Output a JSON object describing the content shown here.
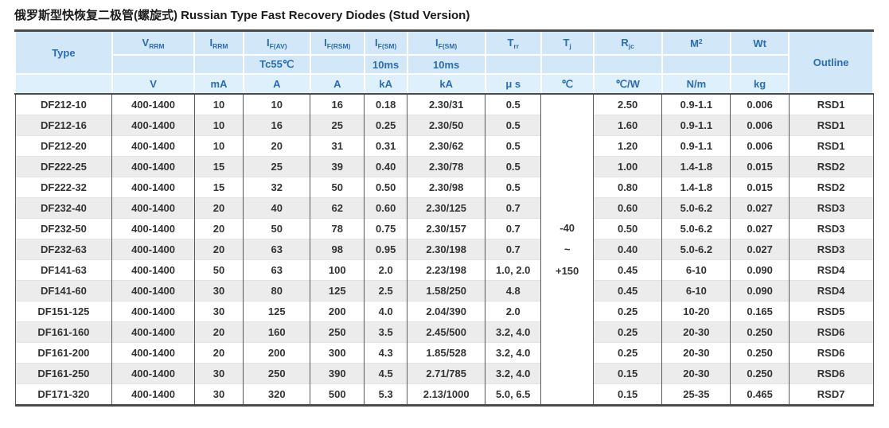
{
  "title": {
    "zh": "俄罗斯型快恢复二极管(螺旋式)",
    "en": " Russian Type Fast Recovery Diodes (Stud Version)"
  },
  "colors": {
    "header_text_blue": "#2c6cb4",
    "header_band_blue": "#d2e7f7",
    "unit_band_blue": "#ddf0fc",
    "row_stripe_gray": "#ececec",
    "rule_dark": "#4b4b4b",
    "grid_gray": "#58595b",
    "data_text": "#333333"
  },
  "table": {
    "header": {
      "type_label": "Type",
      "outline_label": "Outline",
      "symbols": {
        "vrrm": {
          "base": "V",
          "sub": "RRM"
        },
        "irrm": {
          "base": "I",
          "sub": "RRM"
        },
        "ifav": {
          "base": "I",
          "sub": "F(AV)"
        },
        "ifrsm": {
          "base": "I",
          "sub": "F(RSM)"
        },
        "ifsm1": {
          "base": "I",
          "sub": "F(SM)"
        },
        "ifsm2": {
          "base": "I",
          "sub": "F(SM)"
        },
        "trr": {
          "base": "T",
          "sub": "rr"
        },
        "tj": {
          "base": "T",
          "sub": "j"
        },
        "rjc": {
          "base": "R",
          "sub": "jc"
        },
        "m2": {
          "base": "M",
          "sup": "2"
        },
        "wt": {
          "base": "Wt"
        }
      },
      "conditions": {
        "ifav": "Tc55℃",
        "ifsm1": "10ms",
        "ifsm2": "10ms"
      },
      "units": [
        "V",
        "mA",
        "A",
        "A",
        "kA",
        "kA",
        "μ s",
        "℃",
        "℃/W",
        "N/m",
        "kg"
      ]
    },
    "tj_cell": {
      "line1": "-40",
      "line2": "~",
      "line3": "+150"
    },
    "rows": [
      {
        "cols": [
          "DF212-10",
          "400-1400",
          "10",
          "10",
          "16",
          "0.18",
          "2.30/31",
          "0.5",
          "2.50",
          "0.9-1.1",
          "0.006",
          "RSD1"
        ]
      },
      {
        "cols": [
          "DF212-16",
          "400-1400",
          "10",
          "16",
          "25",
          "0.25",
          "2.30/50",
          "0.5",
          "1.60",
          "0.9-1.1",
          "0.006",
          "RSD1"
        ]
      },
      {
        "cols": [
          "DF212-20",
          "400-1400",
          "10",
          "20",
          "31",
          "0.31",
          "2.30/62",
          "0.5",
          "1.20",
          "0.9-1.1",
          "0.006",
          "RSD1"
        ]
      },
      {
        "cols": [
          "DF222-25",
          "400-1400",
          "15",
          "25",
          "39",
          "0.40",
          "2.30/78",
          "0.5",
          "1.00",
          "1.4-1.8",
          "0.015",
          "RSD2"
        ]
      },
      {
        "cols": [
          "DF222-32",
          "400-1400",
          "15",
          "32",
          "50",
          "0.50",
          "2.30/98",
          "0.5",
          "0.80",
          "1.4-1.8",
          "0.015",
          "RSD2"
        ]
      },
      {
        "cols": [
          "DF232-40",
          "400-1400",
          "20",
          "40",
          "62",
          "0.60",
          "2.30/125",
          "0.7",
          "0.60",
          "5.0-6.2",
          "0.027",
          "RSD3"
        ]
      },
      {
        "cols": [
          "DF232-50",
          "400-1400",
          "20",
          "50",
          "78",
          "0.75",
          "2.30/157",
          "0.7",
          "0.50",
          "5.0-6.2",
          "0.027",
          "RSD3"
        ]
      },
      {
        "cols": [
          "DF232-63",
          "400-1400",
          "20",
          "63",
          "98",
          "0.95",
          "2.30/198",
          "0.7",
          "0.40",
          "5.0-6.2",
          "0.027",
          "RSD3"
        ]
      },
      {
        "cols": [
          "DF141-63",
          "400-1400",
          "50",
          "63",
          "100",
          "2.0",
          "2.23/198",
          "1.0, 2.0",
          "0.45",
          "6-10",
          "0.090",
          "RSD4"
        ]
      },
      {
        "cols": [
          "DF141-60",
          "400-1400",
          "30",
          "80",
          "125",
          "2.5",
          "1.58/250",
          "4.8",
          "0.45",
          "6-10",
          "0.090",
          "RSD4"
        ]
      },
      {
        "cols": [
          "DF151-125",
          "400-1400",
          "30",
          "125",
          "200",
          "4.0",
          "2.04/390",
          "2.0",
          "0.25",
          "10-20",
          "0.165",
          "RSD5"
        ]
      },
      {
        "cols": [
          "DF161-160",
          "400-1400",
          "20",
          "160",
          "250",
          "3.5",
          "2.45/500",
          "3.2, 4.0",
          "0.25",
          "20-30",
          "0.250",
          "RSD6"
        ]
      },
      {
        "cols": [
          "DF161-200",
          "400-1400",
          "20",
          "200",
          "300",
          "4.3",
          "1.85/528",
          "3.2, 4.0",
          "0.25",
          "20-30",
          "0.250",
          "RSD6"
        ]
      },
      {
        "cols": [
          "DF161-250",
          "400-1400",
          "30",
          "250",
          "390",
          "4.5",
          "2.71/785",
          "3.2, 4.0",
          "0.15",
          "20-30",
          "0.250",
          "RSD6"
        ]
      },
      {
        "cols": [
          "DF171-320",
          "400-1400",
          "30",
          "320",
          "500",
          "5.3",
          "2.13/1000",
          "5.0, 6.5",
          "0.15",
          "25-35",
          "0.465",
          "RSD7"
        ]
      }
    ]
  }
}
